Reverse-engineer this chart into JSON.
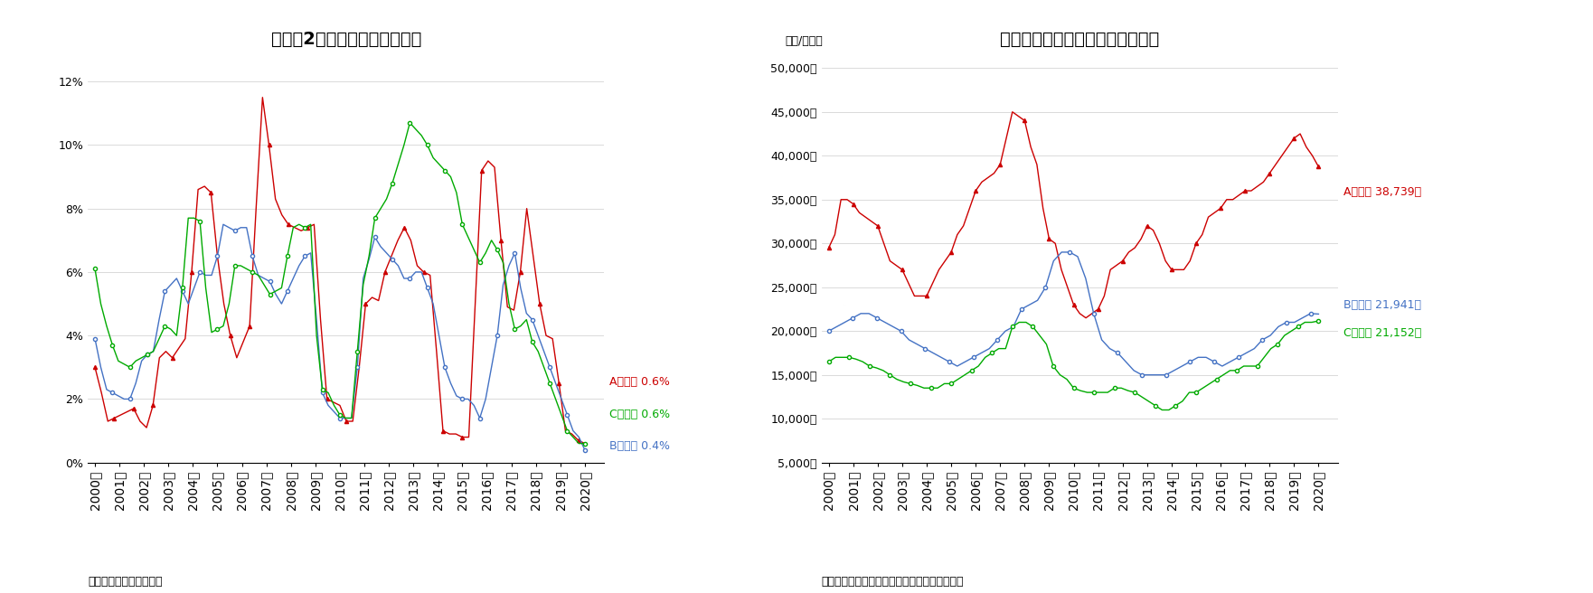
{
  "title1": "図表－2　東京都心部の空室率",
  "title2": "図表－３　東京都心部の成約賃料",
  "source1": "（出所）三幸エステート",
  "source2": "（出所）三幸エステート・ニッセイ基礎研究所",
  "ylabel2": "（円/月坪）",
  "xtick_labels": [
    "2000年",
    "2001年",
    "2002年",
    "2003年",
    "2004年",
    "2005年",
    "2006年",
    "2007年",
    "2008年",
    "2009年",
    "2010年",
    "2011年",
    "2012年",
    "2013年",
    "2014年",
    "2015年",
    "2016年",
    "2017年",
    "2018年",
    "2019年",
    "2020年"
  ],
  "color_red": "#cc0000",
  "color_blue": "#4472c4",
  "color_green": "#00aa00",
  "legend1_A": "Aクラス 0.6%",
  "legend1_C": "Cクラス 0.6%",
  "legend1_B": "Bクラス 0.4%",
  "legend2_A": "Aクラス 38,739円",
  "legend2_B": "Bクラス 21,941円",
  "legend2_C": "Cクラス 21,152円",
  "vac_A": [
    3.0,
    2.2,
    1.3,
    1.4,
    1.5,
    1.6,
    1.7,
    1.3,
    1.1,
    1.8,
    3.3,
    3.5,
    3.3,
    3.6,
    3.9,
    6.0,
    8.6,
    8.7,
    8.5,
    6.5,
    5.0,
    4.0,
    3.3,
    3.8,
    4.3,
    8.0,
    11.5,
    10.0,
    8.3,
    7.8,
    7.5,
    7.4,
    7.3,
    7.4,
    7.5,
    4.5,
    2.0,
    1.9,
    1.8,
    1.3,
    1.3,
    3.0,
    5.0,
    5.2,
    5.1,
    6.0,
    6.5,
    7.0,
    7.4,
    7.0,
    6.2,
    6.0,
    5.9,
    3.5,
    1.0,
    0.9,
    0.9,
    0.8,
    0.8,
    5.0,
    9.2,
    9.5,
    9.3,
    7.0,
    4.9,
    4.8,
    6.0,
    8.0,
    6.5,
    5.0,
    4.0,
    3.9,
    2.5,
    1.0,
    0.9,
    0.7,
    0.6
  ],
  "vac_B": [
    3.9,
    3.0,
    2.3,
    2.2,
    2.1,
    2.0,
    2.0,
    2.5,
    3.2,
    3.4,
    3.5,
    4.5,
    5.4,
    5.6,
    5.8,
    5.4,
    5.0,
    5.5,
    6.0,
    5.9,
    5.9,
    6.5,
    7.5,
    7.4,
    7.3,
    7.4,
    7.4,
    6.5,
    5.9,
    5.8,
    5.7,
    5.3,
    5.0,
    5.4,
    5.8,
    6.2,
    6.5,
    6.6,
    4.5,
    2.2,
    1.8,
    1.6,
    1.4,
    1.4,
    1.4,
    3.0,
    5.8,
    6.4,
    7.1,
    6.8,
    6.6,
    6.4,
    6.2,
    5.8,
    5.8,
    6.0,
    6.0,
    5.5,
    5.0,
    4.0,
    3.0,
    2.5,
    2.1,
    2.0,
    2.0,
    1.8,
    1.4,
    2.0,
    3.0,
    4.0,
    5.6,
    6.2,
    6.6,
    5.5,
    4.7,
    4.5,
    4.0,
    3.5,
    3.0,
    2.5,
    2.0,
    1.5,
    1.0,
    0.8,
    0.4
  ],
  "vac_C": [
    6.1,
    5.0,
    4.3,
    3.7,
    3.2,
    3.1,
    3.0,
    3.2,
    3.3,
    3.4,
    3.5,
    3.9,
    4.3,
    4.2,
    4.0,
    5.5,
    7.7,
    7.7,
    7.6,
    5.5,
    4.1,
    4.2,
    4.3,
    5.0,
    6.2,
    6.2,
    6.1,
    6.0,
    5.9,
    5.6,
    5.3,
    5.4,
    5.5,
    6.5,
    7.4,
    7.5,
    7.4,
    7.5,
    4.0,
    2.3,
    2.2,
    1.8,
    1.5,
    1.4,
    1.4,
    3.5,
    5.6,
    6.5,
    7.7,
    8.0,
    8.3,
    8.8,
    9.4,
    10.0,
    10.7,
    10.5,
    10.3,
    10.0,
    9.6,
    9.4,
    9.2,
    9.0,
    8.5,
    7.5,
    7.1,
    6.7,
    6.3,
    6.6,
    7.0,
    6.7,
    6.3,
    5.0,
    4.2,
    4.3,
    4.5,
    3.8,
    3.5,
    3.0,
    2.5,
    2.0,
    1.5,
    1.0,
    0.8,
    0.6,
    0.6
  ],
  "rent_A": [
    29500,
    31000,
    35000,
    35000,
    34500,
    33500,
    33000,
    32500,
    32000,
    30000,
    28000,
    27500,
    27000,
    25500,
    24000,
    24000,
    24000,
    25500,
    27000,
    28000,
    29000,
    31000,
    32000,
    34000,
    36000,
    37000,
    37500,
    38000,
    39000,
    42000,
    45000,
    44500,
    44000,
    41000,
    39000,
    34000,
    30500,
    30000,
    27000,
    25000,
    23000,
    22000,
    21500,
    22000,
    22500,
    24000,
    27000,
    27500,
    28000,
    29000,
    29500,
    30500,
    32000,
    31500,
    30000,
    28000,
    27000,
    27000,
    27000,
    28000,
    30000,
    31000,
    33000,
    33500,
    34000,
    35000,
    35000,
    35500,
    36000,
    36000,
    36500,
    37000,
    38000,
    39000,
    40000,
    41000,
    42000,
    42500,
    41000,
    40000,
    38739
  ],
  "rent_B": [
    20000,
    20500,
    21000,
    21500,
    22000,
    22000,
    21500,
    21000,
    20500,
    20000,
    19000,
    18500,
    18000,
    17500,
    17000,
    16500,
    16000,
    16500,
    17000,
    17500,
    18000,
    19000,
    20000,
    20500,
    22500,
    23000,
    23500,
    25000,
    28000,
    29000,
    29000,
    28500,
    26000,
    22000,
    19000,
    18000,
    17500,
    16500,
    15500,
    15000,
    15000,
    15000,
    15000,
    15500,
    16000,
    16500,
    17000,
    17000,
    16500,
    16000,
    16500,
    17000,
    17500,
    18000,
    19000,
    19500,
    20500,
    21000,
    21000,
    21500,
    22000,
    21941
  ],
  "rent_C": [
    16500,
    17000,
    17000,
    17000,
    16800,
    16500,
    16000,
    15800,
    15500,
    15000,
    14500,
    14200,
    14000,
    13800,
    13500,
    13500,
    13500,
    14000,
    14000,
    14500,
    15000,
    15500,
    16000,
    17000,
    17500,
    18000,
    18000,
    20500,
    21000,
    21000,
    20500,
    19500,
    18500,
    16000,
    15000,
    14500,
    13500,
    13200,
    13000,
    13000,
    13000,
    13000,
    13500,
    13500,
    13200,
    13000,
    12500,
    12000,
    11500,
    11000,
    11000,
    11500,
    12000,
    13000,
    13000,
    13500,
    14000,
    14500,
    15000,
    15500,
    15500,
    16000,
    16000,
    16000,
    17000,
    18000,
    18500,
    19500,
    20000,
    20500,
    21000,
    21000,
    21152
  ]
}
